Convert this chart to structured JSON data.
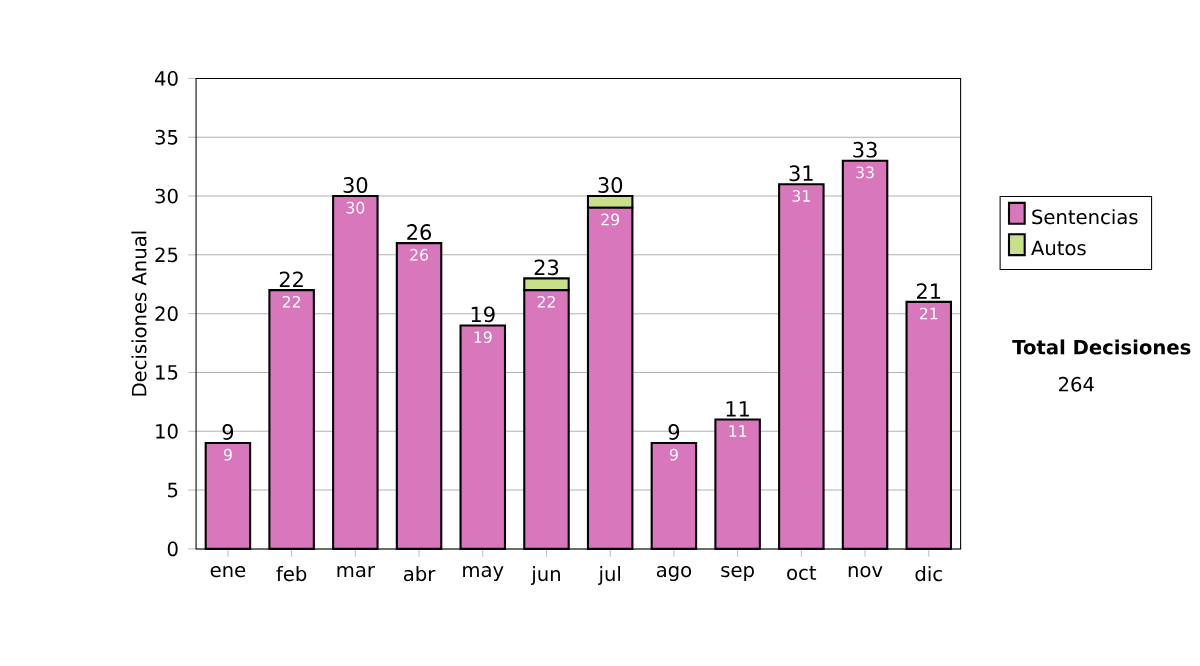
{
  "chart_data": {
    "type": "bar",
    "stacked": true,
    "ylabel": "Decisiones Anual",
    "categories": [
      "ene",
      "feb",
      "mar",
      "abr",
      "may",
      "jun",
      "jul",
      "ago",
      "sep",
      "oct",
      "nov",
      "dic"
    ],
    "series": [
      {
        "name": "Sentencias",
        "color": "#d877bb",
        "values": [
          9,
          22,
          30,
          26,
          19,
          22,
          29,
          9,
          11,
          31,
          33,
          21
        ],
        "value_labels": [
          "9",
          "22",
          "30",
          "26",
          "19",
          "22",
          "29",
          "9",
          "11",
          "31",
          "33",
          "21"
        ]
      },
      {
        "name": "Autos",
        "color": "#c8e08a",
        "values": [
          null,
          null,
          null,
          null,
          null,
          1,
          1,
          null,
          null,
          null,
          null,
          null
        ]
      }
    ],
    "totals": [
      "9",
      "22",
      "30",
      "26",
      "19",
      "23",
      "30",
      "9",
      "11",
      "31",
      "33",
      "21"
    ],
    "ylim": [
      0,
      40
    ],
    "yticks": [
      0,
      5,
      10,
      15,
      20,
      25,
      30,
      35,
      40
    ],
    "grid": "y",
    "legend": "right",
    "annotations": [
      "Total Decisiones",
      "264"
    ]
  }
}
